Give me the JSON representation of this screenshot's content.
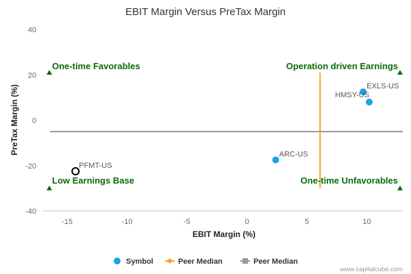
{
  "chart_data": {
    "type": "scatter",
    "title": "EBIT Margin Versus PreTax Margin",
    "xlabel": "EBIT Margin (%)",
    "ylabel": "PreTax Margin (%)",
    "xlim": [
      -17,
      13
    ],
    "ylim": [
      -40,
      40
    ],
    "x_ticks": [
      -15,
      -10,
      -5,
      0,
      5,
      10
    ],
    "y_ticks": [
      -40,
      -20,
      0,
      20,
      40
    ],
    "points": [
      {
        "label": "EXLS-US",
        "x": 9.7,
        "y": 12.5,
        "style": "filled"
      },
      {
        "label": "HMSY-US",
        "x": 10.2,
        "y": 8.0,
        "style": "filled"
      },
      {
        "label": "ARC-US",
        "x": 2.4,
        "y": -17.5,
        "style": "filled"
      },
      {
        "label": "PFMT-US",
        "x": -14.3,
        "y": -22.5,
        "style": "hollow"
      }
    ],
    "peer_median_x": 6.1,
    "peer_median_x_span": [
      -30,
      21
    ],
    "peer_median_y": -5,
    "quadrant_labels": {
      "top_left": "One-time Favorables",
      "top_right": "Operation driven Earnings",
      "bottom_left": "Low Earnings Base",
      "bottom_right": "One-time Unfavorables"
    },
    "quadrant_marker_y": {
      "top": 21,
      "bottom": -30
    },
    "legend": [
      {
        "label": "Symbol",
        "kind": "dot",
        "color": "#1aa1e8"
      },
      {
        "label": "Peer Median",
        "kind": "line-diamond",
        "color": "#f7a21b"
      },
      {
        "label": "Peer Median",
        "kind": "line-square",
        "color": "#8f99a6"
      }
    ],
    "legend_position": "bottom-center",
    "grid": false,
    "colors": {
      "point": "#1aa1e8",
      "hollow_point": "#000000",
      "median_vertical": "#f7a21b",
      "median_horizontal": "#8f99a6",
      "quadrant": "#0b6b0b"
    }
  },
  "credit": "www.capitalcube.com"
}
